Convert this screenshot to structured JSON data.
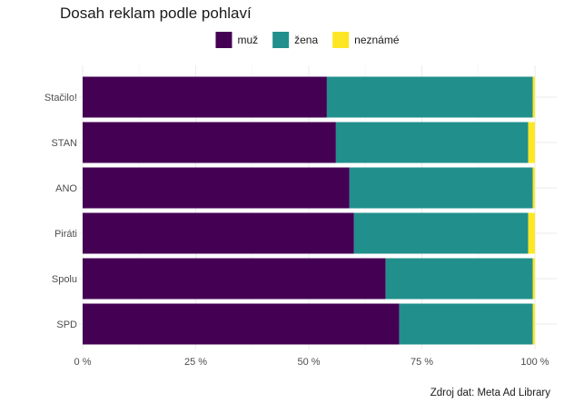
{
  "chart_data": {
    "type": "bar",
    "orientation": "horizontal",
    "stacked": true,
    "title": "Dosah reklam podle pohlaví",
    "caption": "Zdroj dat: Meta Ad Library",
    "categories": [
      "Stačilo!",
      "STAN",
      "ANO",
      "Piráti",
      "Spolu",
      "SPD"
    ],
    "series": [
      {
        "name": "muž",
        "color": "#440154",
        "values": [
          0.54,
          0.56,
          0.59,
          0.6,
          0.67,
          0.7
        ]
      },
      {
        "name": "žena",
        "color": "#21908C",
        "values": [
          0.455,
          0.425,
          0.405,
          0.385,
          0.325,
          0.295
        ]
      },
      {
        "name": "neznámé",
        "color": "#FDE725",
        "values": [
          0.005,
          0.015,
          0.005,
          0.015,
          0.005,
          0.005
        ]
      }
    ],
    "xlim": [
      0,
      1
    ],
    "x_ticks": [
      0,
      0.25,
      0.5,
      0.75,
      1
    ],
    "x_tick_labels": [
      "0 %",
      "25 %",
      "50 %",
      "75 %",
      "100 %"
    ],
    "legend_position": "top",
    "grid": true
  }
}
